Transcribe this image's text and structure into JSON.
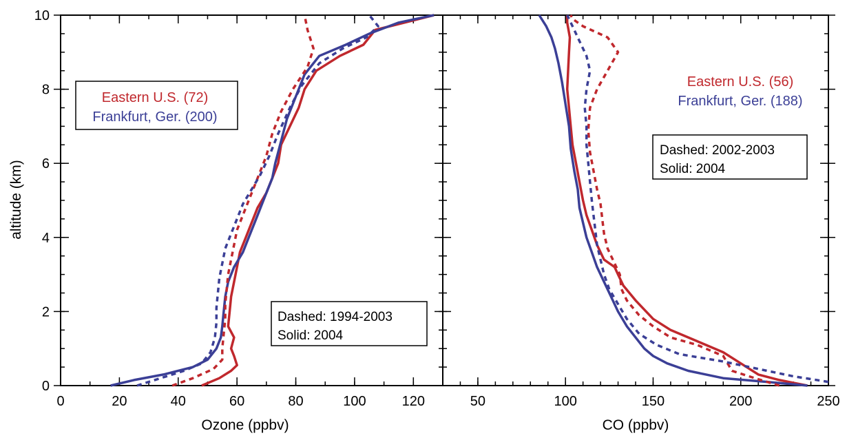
{
  "colors": {
    "eastern": "#c0282d",
    "frankfurt": "#3b3f96"
  },
  "chart_data": [
    {
      "type": "line",
      "xlabel": "Ozone (ppbv)",
      "ylabel": "altitude (km)",
      "xlim": [
        0,
        130
      ],
      "ylim": [
        0,
        10
      ],
      "xticks": [
        0,
        20,
        40,
        60,
        80,
        100,
        120
      ],
      "yticks": [
        0,
        2,
        4,
        6,
        8,
        10
      ],
      "legend": {
        "placement": "upper-left",
        "entries": [
          "Eastern U.S. (72)",
          "Frankfurt, Ger. (200)"
        ]
      },
      "note": {
        "placement": "lower-right",
        "lines": [
          "Dashed: 1994-2003",
          "Solid: 2004"
        ]
      },
      "series": [
        {
          "name": "Eastern U.S. (72)",
          "style": "solid",
          "color": "eastern",
          "x": [
            48,
            54,
            58,
            60,
            59,
            58,
            59,
            57,
            57.5,
            58,
            59,
            60,
            61,
            63,
            65,
            67,
            70,
            72,
            74,
            75,
            78,
            81,
            83,
            87,
            95,
            103,
            107,
            127
          ],
          "y": [
            0,
            0.2,
            0.4,
            0.55,
            0.8,
            1.0,
            1.3,
            1.6,
            2.0,
            2.4,
            2.8,
            3.2,
            3.6,
            4.0,
            4.4,
            4.8,
            5.2,
            5.6,
            6.0,
            6.5,
            7.0,
            7.5,
            8.0,
            8.5,
            8.9,
            9.2,
            9.6,
            10
          ]
        },
        {
          "name": "Frankfurt, Ger. (200)",
          "style": "solid",
          "color": "frankfurt",
          "x": [
            17,
            25,
            35,
            45,
            50,
            53,
            54.5,
            55,
            55.5,
            56,
            57,
            59,
            62,
            64,
            66,
            68,
            70,
            72,
            73,
            75,
            77,
            80,
            83,
            88,
            97,
            105,
            115,
            127
          ],
          "y": [
            0,
            0.15,
            0.3,
            0.5,
            0.7,
            1.0,
            1.3,
            1.6,
            2.0,
            2.4,
            2.8,
            3.2,
            3.6,
            4.0,
            4.4,
            4.8,
            5.2,
            5.6,
            6.0,
            6.6,
            7.2,
            7.8,
            8.4,
            8.9,
            9.2,
            9.5,
            9.8,
            10
          ]
        },
        {
          "name": "",
          "style": "dashed",
          "color": "eastern",
          "x": [
            38,
            45,
            52,
            55,
            55,
            55.5,
            56,
            56,
            56.5,
            57,
            58,
            59,
            60,
            62,
            64,
            66,
            68,
            70,
            72,
            75,
            79,
            84,
            86,
            84,
            83
          ],
          "y": [
            0,
            0.2,
            0.45,
            0.7,
            1.0,
            1.4,
            1.8,
            2.2,
            2.6,
            3.0,
            3.4,
            3.8,
            4.2,
            4.6,
            5.0,
            5.4,
            5.8,
            6.2,
            6.8,
            7.4,
            8.0,
            8.6,
            9.1,
            9.6,
            10
          ]
        },
        {
          "name": "",
          "style": "dashed",
          "color": "frankfurt",
          "x": [
            26,
            34,
            42,
            48,
            51,
            52.5,
            53,
            53,
            53.5,
            54,
            55,
            56,
            58,
            60,
            62,
            65,
            68,
            71,
            74,
            78,
            82,
            88,
            96,
            104,
            108,
            105
          ],
          "y": [
            0,
            0.2,
            0.4,
            0.6,
            0.9,
            1.3,
            1.7,
            2.1,
            2.5,
            2.9,
            3.3,
            3.7,
            4.1,
            4.5,
            4.9,
            5.3,
            5.7,
            6.2,
            6.8,
            7.5,
            8.1,
            8.7,
            9.1,
            9.4,
            9.7,
            10
          ]
        }
      ]
    },
    {
      "type": "line",
      "xlabel": "CO (ppbv)",
      "ylabel": "",
      "xlim": [
        30,
        250
      ],
      "ylim": [
        0,
        10
      ],
      "xticks": [
        50,
        100,
        150,
        200,
        250
      ],
      "yticks": [
        0,
        2,
        4,
        6,
        8,
        10
      ],
      "legend": {
        "placement": "upper-right",
        "entries": [
          "Eastern U.S. (56)",
          "Frankfurt, Ger. (188)"
        ]
      },
      "note": {
        "placement": "center-right",
        "lines": [
          "Dashed: 2002-2003",
          "Solid: 2004"
        ]
      },
      "series": [
        {
          "name": "Eastern U.S. (56)",
          "style": "solid",
          "color": "eastern",
          "x": [
            238,
            222,
            210,
            200,
            190,
            175,
            160,
            150,
            140,
            133,
            130,
            128,
            122,
            118,
            115,
            112,
            110,
            108,
            106,
            104,
            103,
            102,
            101,
            101.5,
            102,
            102.5,
            101,
            101
          ],
          "y": [
            0,
            0.15,
            0.3,
            0.6,
            0.9,
            1.2,
            1.5,
            1.8,
            2.3,
            2.7,
            3.0,
            3.2,
            3.4,
            3.8,
            4.2,
            4.6,
            5.0,
            5.5,
            6.0,
            6.5,
            7.0,
            7.5,
            8.0,
            8.5,
            9.0,
            9.4,
            9.8,
            10
          ]
        },
        {
          "name": "Frankfurt, Ger. (188)",
          "style": "solid",
          "color": "frankfurt",
          "x": [
            238,
            215,
            190,
            170,
            158,
            150,
            145,
            140,
            135,
            130,
            126,
            122,
            118,
            115,
            112,
            110,
            108,
            107,
            105,
            103,
            102,
            100,
            98,
            96,
            94,
            92,
            89,
            85
          ],
          "y": [
            0,
            0.1,
            0.2,
            0.4,
            0.6,
            0.8,
            1.0,
            1.3,
            1.6,
            2.0,
            2.4,
            2.8,
            3.2,
            3.6,
            4.0,
            4.4,
            4.8,
            5.3,
            5.8,
            6.4,
            7.0,
            7.6,
            8.2,
            8.7,
            9.1,
            9.4,
            9.7,
            10
          ]
        },
        {
          "name": "",
          "style": "dashed",
          "color": "eastern",
          "x": [
            222,
            208,
            195,
            190,
            175,
            160,
            150,
            142,
            135,
            132,
            131,
            128,
            124,
            122,
            121,
            120,
            118,
            116,
            114,
            113,
            114,
            118,
            124,
            130,
            124,
            110,
            104,
            103
          ],
          "y": [
            0,
            0.2,
            0.4,
            0.8,
            1.1,
            1.3,
            1.6,
            1.9,
            2.3,
            2.6,
            3.0,
            3.3,
            3.7,
            4.1,
            4.5,
            4.9,
            5.3,
            5.8,
            6.3,
            6.9,
            7.5,
            8.0,
            8.5,
            9.0,
            9.4,
            9.7,
            9.9,
            10
          ]
        },
        {
          "name": "",
          "style": "dashed",
          "color": "frankfurt",
          "x": [
            250,
            230,
            210,
            190,
            165,
            152,
            142,
            135,
            130,
            125,
            122,
            120,
            118,
            117,
            116,
            115,
            114,
            113,
            112,
            112,
            111,
            112,
            114,
            112,
            108,
            104,
            101
          ],
          "y": [
            0.1,
            0.25,
            0.45,
            0.65,
            0.85,
            1.1,
            1.4,
            1.8,
            2.2,
            2.6,
            3.0,
            3.4,
            3.8,
            4.2,
            4.6,
            5.0,
            5.5,
            6.0,
            6.5,
            7.0,
            7.5,
            8.0,
            8.5,
            8.9,
            9.3,
            9.7,
            10
          ]
        }
      ]
    }
  ]
}
